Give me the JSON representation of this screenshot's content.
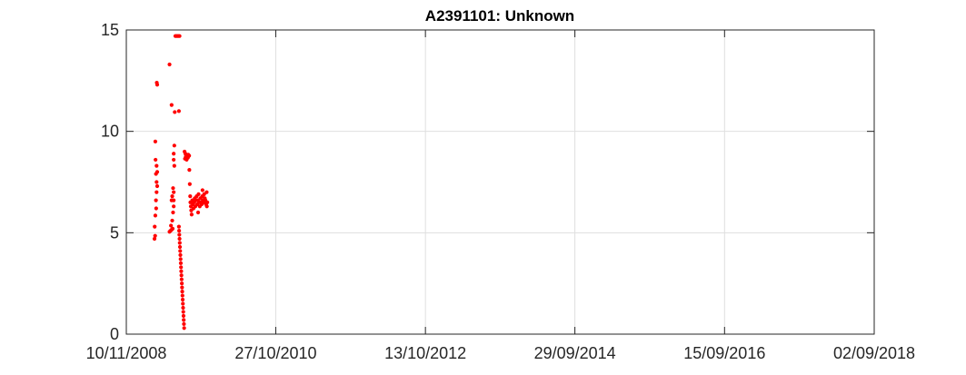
{
  "chart_data": {
    "type": "scatter",
    "title": "A2391101: Unknown",
    "xlabel": "",
    "ylabel": "",
    "x_axis": {
      "type": "date",
      "range": [
        "10/11/2008",
        "02/09/2018"
      ],
      "ticks": [
        "10/11/2008",
        "27/10/2010",
        "13/10/2012",
        "29/09/2014",
        "15/09/2016",
        "02/09/2018"
      ]
    },
    "y_axis": {
      "range": [
        0,
        15
      ],
      "ticks": [
        "0",
        "5",
        "10",
        "15"
      ]
    },
    "grid": true,
    "legend": "none",
    "marker_color": "#ff0000",
    "series": [
      {
        "points": [
          [
            "2009-03-25",
            4.7
          ],
          [
            "2009-03-28",
            4.85
          ],
          [
            "2009-03-26",
            5.3
          ],
          [
            "2009-03-29",
            5.85
          ],
          [
            "2009-04-02",
            6.2
          ],
          [
            "2009-04-01",
            6.6
          ],
          [
            "2009-04-04",
            7.0
          ],
          [
            "2009-04-07",
            7.3
          ],
          [
            "2009-04-04",
            7.5
          ],
          [
            "2009-04-01",
            7.9
          ],
          [
            "2009-04-07",
            8.0
          ],
          [
            "2009-04-04",
            8.3
          ],
          [
            "2009-03-30",
            8.6
          ],
          [
            "2009-03-29",
            9.5
          ],
          [
            "2009-04-05",
            12.4
          ],
          [
            "2009-04-07",
            12.3
          ],
          [
            "2009-06-05",
            5.05
          ],
          [
            "2009-06-10",
            5.1
          ],
          [
            "2009-06-15",
            5.15
          ],
          [
            "2009-06-20",
            5.2
          ],
          [
            "2009-06-12",
            5.35
          ],
          [
            "2009-06-18",
            5.6
          ],
          [
            "2009-06-22",
            6.0
          ],
          [
            "2009-06-25",
            6.3
          ],
          [
            "2009-06-15",
            6.6
          ],
          [
            "2009-06-25",
            6.6
          ],
          [
            "2009-06-18",
            6.8
          ],
          [
            "2009-06-25",
            7.0
          ],
          [
            "2009-06-22",
            7.2
          ],
          [
            "2009-06-28",
            8.3
          ],
          [
            "2009-06-25",
            8.6
          ],
          [
            "2009-06-25",
            8.9
          ],
          [
            "2009-06-28",
            9.3
          ],
          [
            "2009-06-15",
            11.3
          ],
          [
            "2009-06-30",
            10.95
          ],
          [
            "2009-07-20",
            11.0
          ],
          [
            "2009-06-05",
            13.3
          ],
          [
            "2009-07-03",
            14.7
          ],
          [
            "2009-07-08",
            14.7
          ],
          [
            "2009-07-13",
            14.7
          ],
          [
            "2009-07-18",
            14.7
          ],
          [
            "2009-07-23",
            14.7
          ],
          [
            "2009-07-20",
            5.3
          ],
          [
            "2009-07-21",
            5.1
          ],
          [
            "2009-07-22",
            4.9
          ],
          [
            "2009-07-23",
            4.7
          ],
          [
            "2009-07-24",
            4.5
          ],
          [
            "2009-07-25",
            4.3
          ],
          [
            "2009-07-26",
            4.1
          ],
          [
            "2009-07-27",
            3.9
          ],
          [
            "2009-07-28",
            3.7
          ],
          [
            "2009-07-29",
            3.5
          ],
          [
            "2009-07-30",
            3.3
          ],
          [
            "2009-07-31",
            3.1
          ],
          [
            "2009-08-01",
            2.9
          ],
          [
            "2009-08-02",
            2.7
          ],
          [
            "2009-08-03",
            2.5
          ],
          [
            "2009-08-04",
            2.3
          ],
          [
            "2009-08-05",
            2.1
          ],
          [
            "2009-08-06",
            1.9
          ],
          [
            "2009-08-07",
            1.7
          ],
          [
            "2009-08-08",
            1.5
          ],
          [
            "2009-08-09",
            1.3
          ],
          [
            "2009-08-10",
            1.1
          ],
          [
            "2009-08-11",
            0.9
          ],
          [
            "2009-08-12",
            0.7
          ],
          [
            "2009-08-13",
            0.5
          ],
          [
            "2009-08-14",
            0.3
          ],
          [
            "2009-08-16",
            9.0
          ],
          [
            "2009-08-20",
            8.9
          ],
          [
            "2009-08-24",
            8.75
          ],
          [
            "2009-08-28",
            8.8
          ],
          [
            "2009-09-01",
            8.7
          ],
          [
            "2009-08-18",
            8.65
          ],
          [
            "2009-08-26",
            8.6
          ],
          [
            "2009-09-03",
            8.85
          ],
          [
            "2009-09-07",
            8.8
          ],
          [
            "2009-08-22",
            8.75
          ],
          [
            "2009-09-08",
            8.1
          ],
          [
            "2009-09-10",
            7.4
          ],
          [
            "2009-09-13",
            6.5
          ],
          [
            "2009-09-15",
            6.3
          ],
          [
            "2009-09-17",
            6.1
          ],
          [
            "2009-09-19",
            5.9
          ],
          [
            "2009-09-12",
            6.8
          ],
          [
            "2009-09-22",
            6.6
          ],
          [
            "2009-09-25",
            6.4
          ],
          [
            "2009-09-28",
            6.2
          ],
          [
            "2009-10-01",
            6.5
          ],
          [
            "2009-10-04",
            6.7
          ],
          [
            "2009-10-07",
            6.3
          ],
          [
            "2009-10-10",
            6.6
          ],
          [
            "2009-10-13",
            6.8
          ],
          [
            "2009-10-16",
            6.4
          ],
          [
            "2009-10-19",
            6.6
          ],
          [
            "2009-10-22",
            6.9
          ],
          [
            "2009-10-25",
            6.5
          ],
          [
            "2009-10-28",
            6.3
          ],
          [
            "2009-10-31",
            6.7
          ],
          [
            "2009-11-03",
            6.5
          ],
          [
            "2009-11-06",
            6.4
          ],
          [
            "2009-11-09",
            6.8
          ],
          [
            "2009-11-12",
            6.6
          ],
          [
            "2009-11-15",
            6.5
          ],
          [
            "2009-11-18",
            6.9
          ],
          [
            "2009-11-21",
            6.7
          ],
          [
            "2009-11-24",
            6.6
          ],
          [
            "2009-11-27",
            6.4
          ],
          [
            "2009-11-30",
            7.0
          ],
          [
            "2009-12-03",
            6.5
          ],
          [
            "2009-10-20",
            6.0
          ],
          [
            "2009-11-10",
            7.1
          ],
          [
            "2009-12-01",
            6.3
          ]
        ]
      }
    ]
  }
}
